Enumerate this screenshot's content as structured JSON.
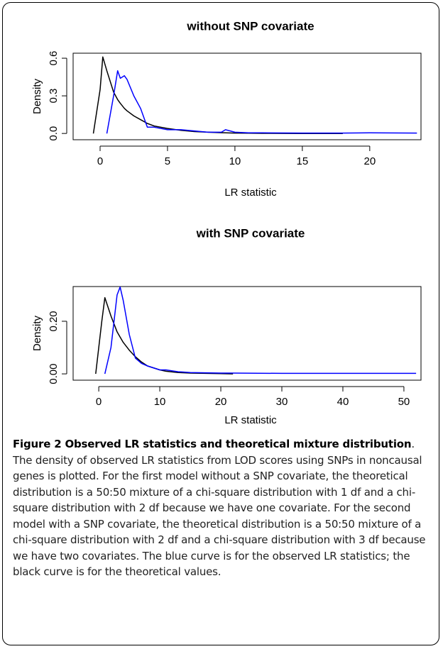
{
  "chart_data": [
    {
      "type": "line",
      "title": "without SNP covariate",
      "x_label": "LR statistic",
      "y_label": "Density",
      "x": [
        -0.5,
        0,
        0.2,
        0.5,
        1,
        1.3,
        1.5,
        1.8,
        2,
        2.5,
        3,
        3.5,
        4,
        5,
        6,
        7,
        8,
        9,
        9.3,
        10,
        11,
        12,
        15,
        18,
        20,
        23.5
      ],
      "xlim": [
        -2,
        23.8
      ],
      "xticks": [
        0,
        5,
        10,
        15,
        20
      ],
      "ylim": [
        -0.05,
        0.64
      ],
      "yticks": [
        {
          "value": 0,
          "label": "0.0"
        },
        0.3,
        0.6
      ],
      "series": [
        {
          "color": "#000000",
          "values": [
            0.0,
            0.35,
            0.61,
            0.5,
            0.33,
            0.27,
            0.24,
            0.2,
            0.18,
            0.14,
            0.11,
            0.08,
            0.06,
            0.04,
            0.025,
            0.015,
            0.01,
            0.006,
            0.005,
            0.003,
            0.002,
            0.001,
            0.0,
            0.0,
            null,
            null
          ]
        },
        {
          "color": "#0000ff",
          "values": [
            null,
            null,
            null,
            0.0,
            0.3,
            0.5,
            0.44,
            0.46,
            0.43,
            0.3,
            0.2,
            0.05,
            0.05,
            0.03,
            0.03,
            0.02,
            0.01,
            0.01,
            0.03,
            0.01,
            0.005,
            0.005,
            0.003,
            0.003,
            0.005,
            0.003
          ]
        }
      ]
    },
    {
      "type": "line",
      "title": "with SNP covariate",
      "x_label": "LR statistic",
      "y_label": "Density",
      "x": [
        -0.5,
        0.5,
        1,
        2,
        3,
        3.5,
        4,
        5,
        6,
        7,
        8,
        10,
        11,
        13,
        15,
        20,
        22,
        30,
        40,
        52
      ],
      "xlim": [
        -4.2,
        52.8
      ],
      "xticks": [
        0,
        10,
        20,
        30,
        40,
        50
      ],
      "ylim": [
        -0.024,
        0.332
      ],
      "yticks": [
        {
          "value": 0,
          "label": "0.00"
        },
        {
          "value": 0.2,
          "label": "0.20"
        }
      ],
      "series": [
        {
          "color": "#000000",
          "values": [
            0.0,
            0.2,
            0.29,
            0.22,
            0.16,
            0.14,
            0.12,
            0.09,
            0.065,
            0.045,
            0.03,
            0.015,
            0.01,
            0.005,
            0.003,
            0.001,
            0.0,
            null,
            null,
            null
          ]
        },
        {
          "color": "#0000ff",
          "values": [
            null,
            null,
            0.0,
            0.1,
            0.3,
            0.33,
            0.28,
            0.15,
            0.06,
            0.04,
            0.03,
            0.015,
            0.015,
            0.008,
            0.005,
            0.003,
            0.003,
            0.002,
            0.002,
            0.002
          ]
        }
      ]
    }
  ],
  "caption": {
    "title": "Figure 2 Observed LR statistics and theoretical mixture distribution",
    "text": ". The density of observed LR statistics from LOD scores using SNPs in noncausal genes is plotted. For the first model without a SNP covariate, the theoretical distribution is a 50:50 mixture of a chi-square distribution with 1 df and a chi-square distribution with 2 df because we have one covariate. For the second model with a SNP covariate, the theoretical distribution is a 50:50 mixture of a chi-square distribution with 2 df and a chi-square distribution with 3 df because we have two covariates. The blue curve is for the observed LR statistics; the black curve is for the theoretical values."
  }
}
